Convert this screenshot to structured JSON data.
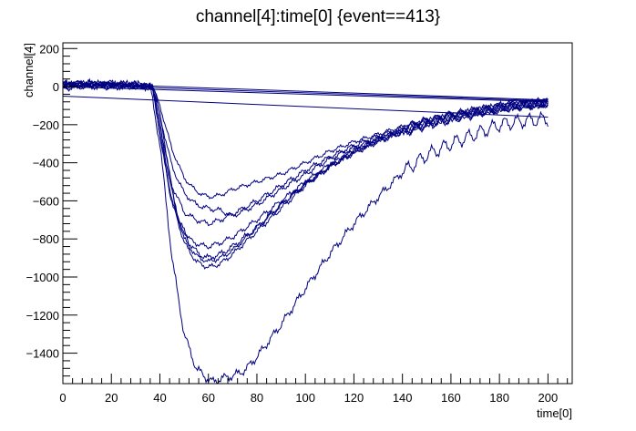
{
  "chart_data": {
    "type": "line",
    "title": "channel[4]:time[0] {event==413}",
    "xlabel": "time[0]",
    "ylabel": "channel[4]",
    "xlim": [
      0,
      210
    ],
    "ylim": [
      -1560,
      230
    ],
    "grid": false,
    "legend": "none",
    "x_ticks": [
      0,
      20,
      40,
      60,
      80,
      100,
      120,
      140,
      160,
      180,
      200
    ],
    "y_ticks": [
      200,
      0,
      -200,
      -400,
      -600,
      -800,
      -1000,
      -1200,
      -1400
    ],
    "line_color": "#000080",
    "series": [
      {
        "x": [
          0,
          10,
          20,
          30,
          36,
          40,
          45,
          50,
          55,
          60,
          62,
          66,
          70,
          75,
          80,
          90,
          100,
          110,
          120,
          130,
          140,
          150,
          160,
          170,
          180,
          190,
          200
        ],
        "y": [
          10,
          15,
          5,
          10,
          0,
          -300,
          -900,
          -1300,
          -1480,
          -1540,
          -1550,
          -1530,
          -1520,
          -1490,
          -1420,
          -1250,
          -1060,
          -880,
          -720,
          -580,
          -450,
          -360,
          -300,
          -250,
          -200,
          -180,
          -170
        ],
        "wiggle": 8
      },
      {
        "x": [
          0,
          10,
          20,
          30,
          37,
          40,
          45,
          50,
          55,
          60,
          65,
          70,
          80,
          90,
          100,
          110,
          120,
          130,
          140,
          150,
          160,
          170,
          180,
          190,
          200
        ],
        "y": [
          15,
          20,
          10,
          5,
          0,
          -250,
          -600,
          -820,
          -920,
          -950,
          -930,
          -880,
          -760,
          -640,
          -520,
          -420,
          -340,
          -280,
          -230,
          -190,
          -160,
          -130,
          -110,
          -95,
          -85
        ],
        "wiggle": 5
      },
      {
        "x": [
          0,
          10,
          20,
          30,
          38,
          42,
          46,
          50,
          55,
          60,
          65,
          70,
          80,
          90,
          100,
          110,
          120,
          130,
          140,
          150,
          160,
          170,
          180,
          190,
          200
        ],
        "y": [
          -10,
          0,
          -5,
          0,
          -10,
          -300,
          -620,
          -800,
          -890,
          -920,
          -900,
          -860,
          -740,
          -620,
          -510,
          -420,
          -350,
          -290,
          -240,
          -200,
          -170,
          -140,
          -120,
          -100,
          -90
        ],
        "wiggle": 5
      },
      {
        "x": [
          0,
          10,
          20,
          30,
          37,
          40,
          44,
          48,
          52,
          56,
          60,
          65,
          70,
          80,
          90,
          100,
          110,
          120,
          130,
          140,
          150,
          160,
          170,
          180,
          190,
          200
        ],
        "y": [
          0,
          10,
          20,
          10,
          -5,
          -200,
          -500,
          -700,
          -820,
          -880,
          -900,
          -880,
          -840,
          -740,
          -620,
          -510,
          -420,
          -340,
          -280,
          -240,
          -200,
          -170,
          -140,
          -110,
          -95,
          -80
        ],
        "wiggle": 6
      },
      {
        "x": [
          0,
          10,
          20,
          30,
          37,
          40,
          45,
          50,
          55,
          60,
          65,
          70,
          80,
          90,
          100,
          110,
          120,
          130,
          140,
          150,
          160,
          170,
          180,
          190,
          200
        ],
        "y": [
          20,
          5,
          10,
          15,
          0,
          -150,
          -420,
          -560,
          -620,
          -640,
          -650,
          -680,
          -620,
          -540,
          -460,
          -380,
          -320,
          -270,
          -230,
          -190,
          -160,
          -130,
          -110,
          -95,
          -85
        ],
        "wiggle": 5
      },
      {
        "x": [
          0,
          10,
          20,
          30,
          37,
          40,
          45,
          50,
          55,
          60,
          65,
          70,
          80,
          90,
          100,
          110,
          120,
          130,
          140,
          150,
          160,
          170,
          180,
          190,
          200
        ],
        "y": [
          0,
          5,
          15,
          5,
          0,
          -100,
          -330,
          -480,
          -550,
          -580,
          -570,
          -540,
          -500,
          -460,
          -400,
          -340,
          -290,
          -250,
          -210,
          -180,
          -150,
          -130,
          -110,
          -95,
          -85
        ],
        "wiggle": 4
      },
      {
        "x": [
          0,
          10,
          20,
          30,
          37,
          40,
          45,
          50,
          55,
          60,
          65,
          70,
          80,
          90,
          100,
          110,
          120,
          130,
          140,
          150,
          160,
          170,
          180,
          190,
          200
        ],
        "y": [
          10,
          20,
          5,
          10,
          0,
          -200,
          -520,
          -660,
          -700,
          -720,
          -700,
          -670,
          -600,
          -520,
          -440,
          -370,
          -310,
          -260,
          -220,
          -180,
          -150,
          -125,
          -105,
          -92,
          -82
        ],
        "wiggle": 5
      },
      {
        "x": [
          0,
          10,
          20,
          30,
          37,
          40,
          44,
          48,
          52,
          56,
          60,
          65,
          70,
          80,
          90,
          100,
          110,
          120,
          130,
          140,
          150,
          160,
          170,
          180,
          190,
          200
        ],
        "y": [
          5,
          15,
          10,
          0,
          -5,
          -250,
          -560,
          -720,
          -800,
          -830,
          -840,
          -820,
          -790,
          -700,
          -600,
          -500,
          -410,
          -340,
          -280,
          -230,
          -190,
          -160,
          -135,
          -110,
          -95,
          -85
        ],
        "wiggle": 5
      },
      {
        "x": [
          0,
          200
        ],
        "y": [
          10,
          -75
        ],
        "wiggle": 0
      },
      {
        "x": [
          0,
          200
        ],
        "y": [
          0,
          -80
        ],
        "wiggle": 0
      },
      {
        "x": [
          0,
          200
        ],
        "y": [
          20,
          -70
        ],
        "wiggle": 0
      },
      {
        "x": [
          0,
          200
        ],
        "y": [
          -50,
          -160
        ],
        "wiggle": 0
      }
    ]
  }
}
